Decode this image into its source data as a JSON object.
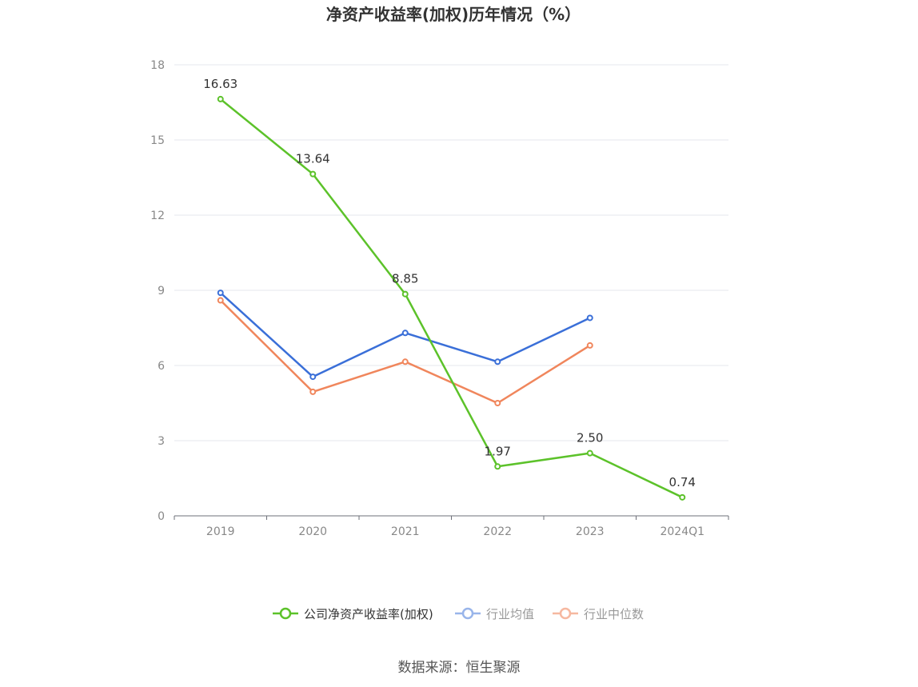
{
  "chart_data": {
    "type": "line",
    "title": "净资产收益率(加权)历年情况（%）",
    "categories": [
      "2019",
      "2020",
      "2021",
      "2022",
      "2023",
      "2024Q1"
    ],
    "ylim": [
      0,
      18
    ],
    "yticks": [
      0,
      3,
      6,
      9,
      12,
      15,
      18
    ],
    "grid": true,
    "legend_position": "bottom-center",
    "series": [
      {
        "name": "公司净资产收益率(加权)",
        "color": "#5cc22a",
        "values": [
          16.63,
          13.64,
          8.85,
          1.97,
          2.5,
          0.74
        ],
        "labels": [
          "16.63",
          "13.64",
          "8.85",
          "1.97",
          "2.50",
          "0.74"
        ]
      },
      {
        "name": "行业均值",
        "color": "#3a6fd8",
        "values": [
          8.9,
          5.55,
          7.3,
          6.15,
          7.9,
          null
        ]
      },
      {
        "name": "行业中位数",
        "color": "#f0865c",
        "values": [
          8.6,
          4.95,
          6.15,
          4.5,
          6.8,
          null
        ]
      }
    ],
    "legend_colors": [
      "#5cc22a",
      "#99b5ea",
      "#f6b8a0"
    ],
    "legend_text_colors": [
      "#333333",
      "#999999",
      "#999999"
    ]
  },
  "source": "数据来源：恒生聚源"
}
